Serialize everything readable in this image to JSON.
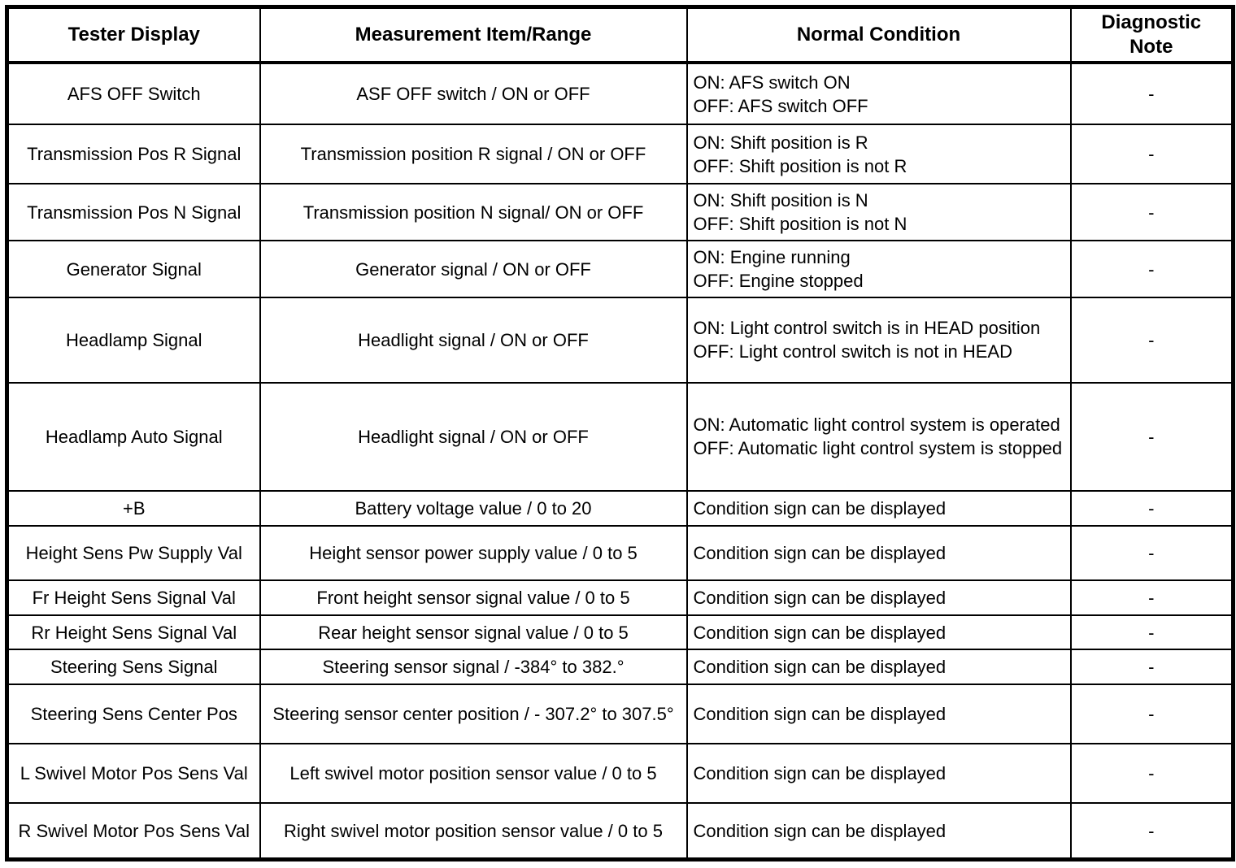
{
  "table": {
    "columns": [
      {
        "label": "Tester Display"
      },
      {
        "label": "Measurement Item/Range"
      },
      {
        "label": "Normal Condition"
      },
      {
        "label": "Diagnostic\nNote"
      }
    ],
    "rows": [
      {
        "tester_display": "AFS OFF Switch",
        "measurement": "ASF OFF switch / ON or OFF",
        "normal_condition": "ON: AFS switch ON\nOFF: AFS switch OFF",
        "diagnostic_note": "-"
      },
      {
        "tester_display": "Transmission Pos R Signal",
        "measurement": "Transmission position R signal / ON or OFF",
        "normal_condition": "ON: Shift position is R\nOFF: Shift position is not R",
        "diagnostic_note": "-"
      },
      {
        "tester_display": "Transmission Pos N Signal",
        "measurement": "Transmission position N signal/ ON or OFF",
        "normal_condition": "ON: Shift position is N\nOFF: Shift position is not N",
        "diagnostic_note": "-"
      },
      {
        "tester_display": "Generator Signal",
        "measurement": "Generator signal / ON or OFF",
        "normal_condition": "ON: Engine running\nOFF: Engine stopped",
        "diagnostic_note": "-"
      },
      {
        "tester_display": "Headlamp Signal",
        "measurement": "Headlight signal / ON or OFF",
        "normal_condition": "ON: Light control switch is in HEAD position\nOFF: Light control switch is not in HEAD",
        "diagnostic_note": "-"
      },
      {
        "tester_display": "Headlamp Auto Signal",
        "measurement": "Headlight signal / ON or OFF",
        "normal_condition": "ON: Automatic light control system is operated\nOFF: Automatic light control system is stopped",
        "diagnostic_note": "-"
      },
      {
        "tester_display": "+B",
        "measurement": "Battery voltage value / 0 to 20",
        "normal_condition": "Condition sign can be displayed",
        "diagnostic_note": "-"
      },
      {
        "tester_display": "Height Sens Pw Supply Val",
        "measurement": "Height sensor power supply value / 0 to 5",
        "normal_condition": "Condition sign can be displayed",
        "diagnostic_note": "-"
      },
      {
        "tester_display": "Fr Height Sens Signal Val",
        "measurement": "Front height sensor signal value / 0 to 5",
        "normal_condition": "Condition sign can be displayed",
        "diagnostic_note": "-"
      },
      {
        "tester_display": "Rr Height Sens Signal Val",
        "measurement": "Rear height sensor signal value / 0 to 5",
        "normal_condition": "Condition sign can be displayed",
        "diagnostic_note": "-"
      },
      {
        "tester_display": "Steering Sens Signal",
        "measurement": "Steering sensor signal / -384° to 382.°",
        "normal_condition": "Condition sign can be displayed",
        "diagnostic_note": "-"
      },
      {
        "tester_display": "Steering Sens Center Pos",
        "measurement": "Steering sensor center position / - 307.2° to 307.5°",
        "normal_condition": "Condition sign can be displayed",
        "diagnostic_note": "-"
      },
      {
        "tester_display": "L Swivel Motor Pos Sens Val",
        "measurement": "Left swivel motor position sensor value / 0 to 5",
        "normal_condition": "Condition sign can be displayed",
        "diagnostic_note": "-"
      },
      {
        "tester_display": "R Swivel Motor Pos Sens Val",
        "measurement": "Right swivel motor position sensor value / 0 to 5",
        "normal_condition": "Condition sign can be displayed",
        "diagnostic_note": "-"
      }
    ]
  }
}
